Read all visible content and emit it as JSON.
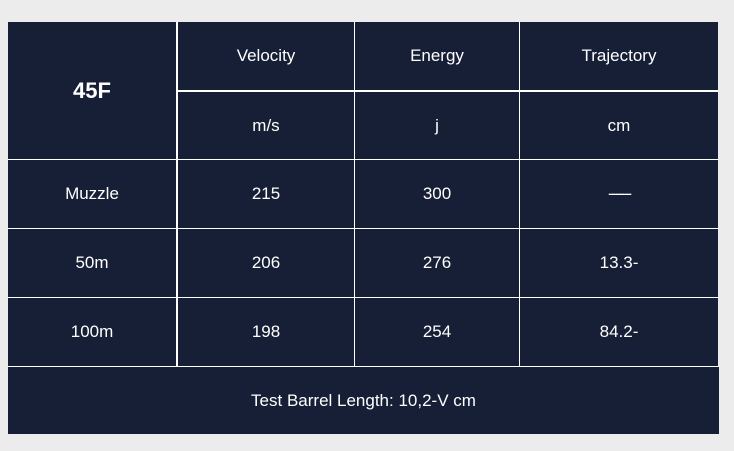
{
  "table": {
    "corner_label": "45F",
    "headers": [
      "Velocity",
      "Energy",
      "Trajectory"
    ],
    "units": [
      "m/s",
      "j",
      "cm"
    ],
    "rows": [
      {
        "label": "Muzzle",
        "values": [
          "215",
          "300",
          "------"
        ]
      },
      {
        "label": "50m",
        "values": [
          "206",
          "276",
          "13.3-"
        ]
      },
      {
        "label": "100m",
        "values": [
          "198",
          "254",
          "84.2-"
        ]
      }
    ],
    "footer": "Test Barrel Length: 10,2-V cm"
  },
  "colors": {
    "cell_background": "#171f36",
    "page_background": "#ececec",
    "border": "#ffffff"
  }
}
